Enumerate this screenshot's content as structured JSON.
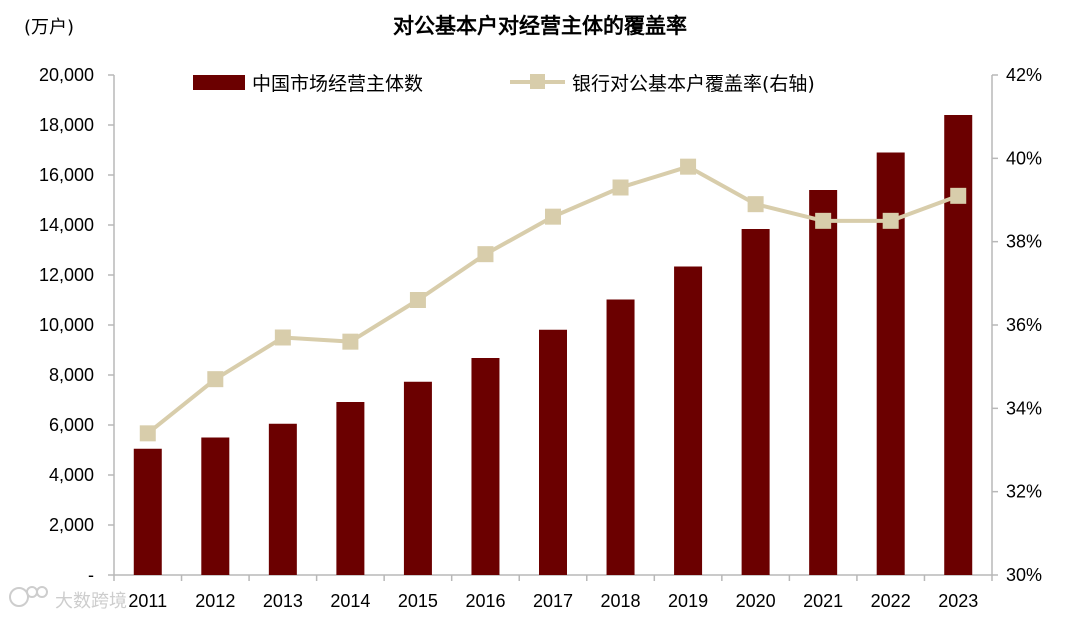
{
  "chart_data": {
    "type": "bar",
    "title": "对公基本户对经营主体的覆盖率",
    "unit_label": "(万户)",
    "categories": [
      "2011",
      "2012",
      "2013",
      "2014",
      "2015",
      "2016",
      "2017",
      "2018",
      "2019",
      "2020",
      "2021",
      "2022",
      "2023"
    ],
    "series": [
      {
        "name": "中国市场经营主体数",
        "type": "bar",
        "axis": "left",
        "color": "#6b0000",
        "values": [
          5050,
          5500,
          6050,
          6920,
          7730,
          8680,
          9810,
          11020,
          12340,
          13840,
          15400,
          16900,
          18400
        ]
      },
      {
        "name": "银行对公基本户覆盖率(右轴)",
        "type": "line",
        "axis": "right",
        "color": "#d8cdab",
        "values": [
          33.4,
          34.7,
          35.7,
          35.6,
          36.6,
          37.7,
          38.6,
          39.3,
          39.8,
          38.9,
          38.5,
          38.5,
          39.1
        ]
      }
    ],
    "y_left": {
      "min": 0,
      "max": 20000,
      "step": 2000,
      "tick_labels": [
        "-",
        "2,000",
        "4,000",
        "6,000",
        "8,000",
        "10,000",
        "12,000",
        "14,000",
        "16,000",
        "18,000",
        "20,000"
      ]
    },
    "y_right": {
      "min": 30,
      "max": 42,
      "step": 2,
      "tick_labels": [
        "30%",
        "32%",
        "34%",
        "36%",
        "38%",
        "40%",
        "42%"
      ]
    },
    "grid": false,
    "legend_position": "top"
  },
  "watermark": {
    "icon": "logo-icon",
    "text": "大数跨境"
  }
}
